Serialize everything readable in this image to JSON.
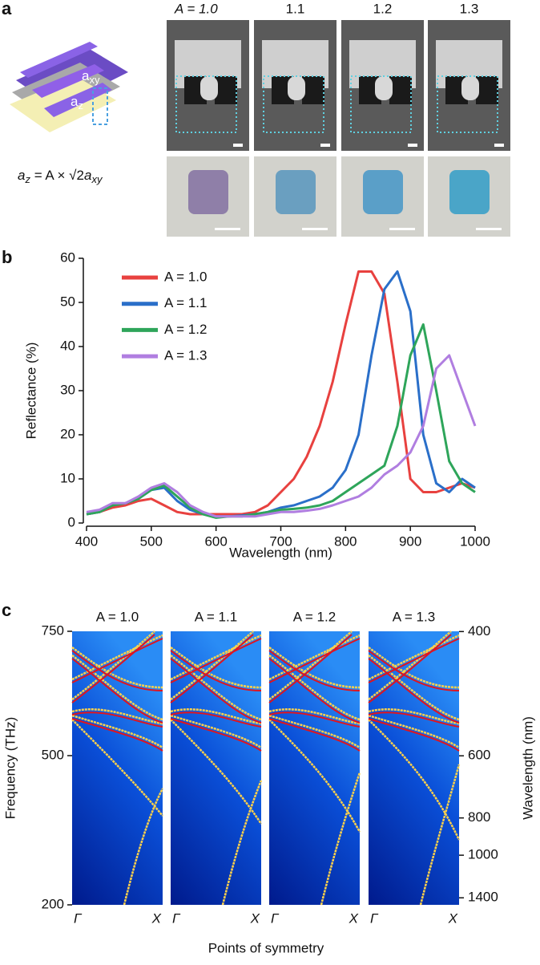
{
  "panel_labels": [
    "a",
    "b",
    "c"
  ],
  "panel_a": {
    "column_labels": [
      "A = 1.0",
      "1.1",
      "1.2",
      "1.3"
    ],
    "label_axy": [
      "a",
      "xy"
    ],
    "label_az": [
      "a",
      "z"
    ],
    "formula": [
      "a",
      "z",
      " = A × √2",
      "a",
      "xy"
    ]
  },
  "chart_data": [
    {
      "type": "line",
      "xlabel": "Wavelength (nm)",
      "ylabel": "Reflectance (%)",
      "x": [
        400,
        420,
        440,
        460,
        480,
        500,
        520,
        540,
        560,
        580,
        600,
        620,
        640,
        660,
        680,
        700,
        720,
        740,
        760,
        780,
        800,
        820,
        840,
        860,
        880,
        900,
        920,
        940,
        960,
        980,
        1000
      ],
      "xlim": [
        400,
        1000
      ],
      "xticks": [
        400,
        500,
        600,
        700,
        800,
        900,
        1000
      ],
      "ylim": [
        0,
        60
      ],
      "yticks": [
        0,
        10,
        20,
        30,
        40,
        50,
        60
      ],
      "legend": "upper left",
      "series": [
        {
          "name": "A = 1.0",
          "color": "#e8413f",
          "values": [
            2,
            2.5,
            3.5,
            4,
            5,
            5.5,
            4,
            2.5,
            2,
            2,
            2,
            2,
            2,
            2.5,
            4,
            7,
            10,
            15,
            22,
            32,
            45,
            57,
            57,
            52,
            32,
            10,
            7,
            7,
            8,
            9,
            8
          ]
        },
        {
          "name": "A = 1.1",
          "color": "#2a6fc9",
          "values": [
            2,
            2.5,
            4,
            4.5,
            5.5,
            7.5,
            8,
            5,
            3,
            2,
            1.5,
            1.5,
            1.7,
            2,
            2.5,
            3.5,
            4,
            5,
            6,
            8,
            12,
            20,
            38,
            53,
            57,
            48,
            20,
            9,
            7,
            10,
            8
          ]
        },
        {
          "name": "A = 1.2",
          "color": "#2ea55a",
          "values": [
            2,
            2.5,
            4,
            4.5,
            5.5,
            7.5,
            8.5,
            6,
            3.5,
            2,
            1.2,
            1.5,
            1.5,
            2,
            2.5,
            3,
            3.2,
            3.5,
            4,
            5,
            7,
            9,
            11,
            13,
            22,
            38,
            45,
            30,
            14,
            9,
            7
          ]
        },
        {
          "name": "A = 1.3",
          "color": "#b07ee0",
          "values": [
            2.5,
            3,
            4.5,
            4.5,
            6,
            8,
            9,
            7,
            4,
            2.5,
            1.5,
            1.5,
            1.5,
            1.5,
            2,
            2.5,
            2.5,
            2.8,
            3.2,
            4,
            5,
            6,
            8,
            11,
            13,
            16,
            22,
            35,
            38,
            30,
            22
          ]
        }
      ]
    },
    {
      "type": "band",
      "xlabel": "Points of symmetry",
      "ylabel": "Frequency (THz)",
      "y2label": "Wavelength (nm)",
      "ylim": [
        200,
        750
      ],
      "yticks": [
        200,
        500,
        750
      ],
      "y2ticks": [
        400,
        600,
        800,
        1000,
        1400
      ],
      "y2_scale": "reciprocal",
      "xtick_labels": [
        "Γ",
        "X"
      ],
      "panels": [
        "A = 1.0",
        "A = 1.1",
        "A = 1.2",
        "A = 1.3"
      ]
    }
  ]
}
